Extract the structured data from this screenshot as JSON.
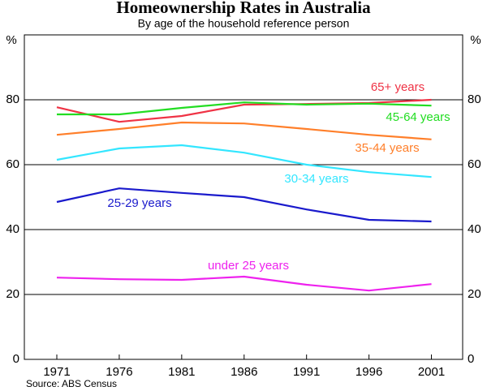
{
  "chart_data": {
    "type": "line",
    "title": "Homeownership Rates in Australia",
    "subtitle": "By age of the household reference person",
    "source": "Source: ABS Census",
    "y_label": "%",
    "y2_label": "%",
    "x": [
      1971,
      1976,
      1981,
      1986,
      1991,
      1996,
      2001
    ],
    "xlim": [
      1968.4,
      2003.5
    ],
    "xticks": [
      1971,
      1976,
      1981,
      1986,
      1991,
      1996,
      2001
    ],
    "ylim": [
      0,
      100
    ],
    "yticks": [
      0,
      20,
      40,
      60,
      80
    ],
    "y2lim": [
      0,
      100
    ],
    "y2ticks": [
      0,
      20,
      40,
      60,
      80
    ],
    "grid": true,
    "series": [
      {
        "name": "65+ years",
        "color": "#ef3345",
        "values": [
          77.7,
          73.2,
          75,
          78.5,
          78.7,
          79,
          80
        ]
      },
      {
        "name": "45-64 years",
        "color": "#22dd22",
        "values": [
          75.5,
          75.5,
          77.5,
          79.2,
          78.5,
          78.8,
          78.2
        ]
      },
      {
        "name": "35-44 years",
        "color": "#ff7f2a",
        "values": [
          69.2,
          71,
          73,
          72.7,
          71,
          69.2,
          67.8
        ]
      },
      {
        "name": "30-34 years",
        "color": "#33e6ff",
        "values": [
          61.5,
          65,
          66,
          63.7,
          60,
          57.7,
          56.2
        ]
      },
      {
        "name": "25-29 years",
        "color": "#1a1acc",
        "values": [
          48.5,
          52.7,
          51.3,
          50,
          46.2,
          43,
          42.5
        ]
      },
      {
        "name": "under 25 years",
        "color": "#ee22ee",
        "values": [
          25.2,
          24.7,
          24.5,
          25.5,
          23,
          21.2,
          23.2
        ]
      }
    ]
  }
}
